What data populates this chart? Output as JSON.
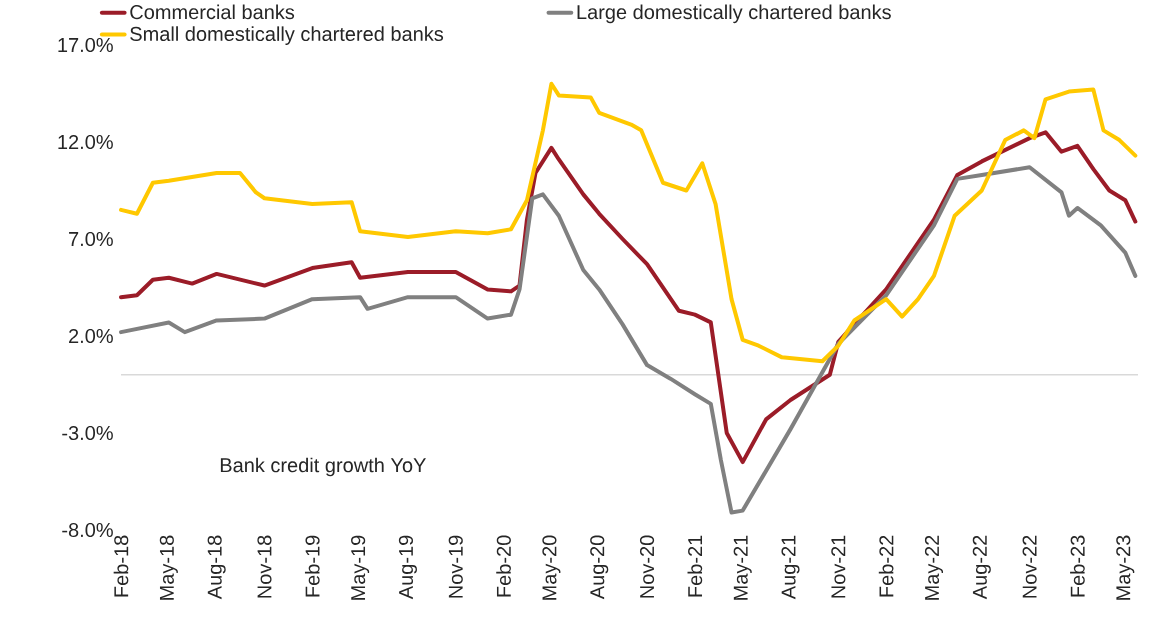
{
  "chart_data": {
    "type": "line",
    "annotations": [
      "Bank credit growth YoY"
    ],
    "xlim": [
      "2018-02-01",
      "2023-05-25"
    ],
    "ylim": [
      -8,
      17
    ],
    "xticks": [
      {
        "value": "2018-02-01",
        "label": "Feb-18"
      },
      {
        "value": "2018-05-01",
        "label": "May-18"
      },
      {
        "value": "2018-08-01",
        "label": "Aug-18"
      },
      {
        "value": "2018-11-01",
        "label": "Nov-18"
      },
      {
        "value": "2019-02-01",
        "label": "Feb-19"
      },
      {
        "value": "2019-05-01",
        "label": "May-19"
      },
      {
        "value": "2019-08-01",
        "label": "Aug-19"
      },
      {
        "value": "2019-11-01",
        "label": "Nov-19"
      },
      {
        "value": "2020-02-01",
        "label": "Feb-20"
      },
      {
        "value": "2020-05-01",
        "label": "May-20"
      },
      {
        "value": "2020-08-01",
        "label": "Aug-20"
      },
      {
        "value": "2020-11-01",
        "label": "Nov-20"
      },
      {
        "value": "2021-02-01",
        "label": "Feb-21"
      },
      {
        "value": "2021-05-01",
        "label": "May-21"
      },
      {
        "value": "2021-08-01",
        "label": "Aug-21"
      },
      {
        "value": "2021-11-01",
        "label": "Nov-21"
      },
      {
        "value": "2022-02-01",
        "label": "Feb-22"
      },
      {
        "value": "2022-05-01",
        "label": "May-22"
      },
      {
        "value": "2022-08-01",
        "label": "Aug-22"
      },
      {
        "value": "2022-11-01",
        "label": "Nov-22"
      },
      {
        "value": "2023-02-01",
        "label": "Feb-23"
      },
      {
        "value": "2023-05-01",
        "label": "May-23"
      }
    ],
    "yticks": [
      {
        "value": -8,
        "label": "-8.0%"
      },
      {
        "value": -3,
        "label": "-3.0%"
      },
      {
        "value": 2,
        "label": "2.0%"
      },
      {
        "value": 7,
        "label": "7.0%"
      },
      {
        "value": 12,
        "label": "12.0%"
      },
      {
        "value": 17,
        "label": "17.0%"
      }
    ],
    "ref_lines": [
      {
        "axis": "y",
        "value": 0,
        "color": "#d9d9d9"
      }
    ],
    "legend": "top",
    "series": [
      {
        "name": "Commercial banks",
        "color": "#9b1c28",
        "x": [
          "2018-02-01",
          "2018-03-01",
          "2018-04-01",
          "2018-05-01",
          "2018-06-15",
          "2018-08-01",
          "2018-11-01",
          "2019-02-01",
          "2019-04-15",
          "2019-05-01",
          "2019-08-01",
          "2019-11-01",
          "2020-01-01",
          "2020-02-15",
          "2020-03-01",
          "2020-03-15",
          "2020-04-01",
          "2020-05-01",
          "2020-05-15",
          "2020-07-01",
          "2020-08-01",
          "2020-09-15",
          "2020-11-01",
          "2021-01-01",
          "2021-02-01",
          "2021-03-01",
          "2021-04-01",
          "2021-05-01",
          "2021-06-15",
          "2021-08-01",
          "2021-10-15",
          "2021-11-01",
          "2022-02-01",
          "2022-05-01",
          "2022-06-15",
          "2022-08-01",
          "2022-11-01",
          "2022-12-01",
          "2023-01-01",
          "2023-02-01",
          "2023-03-01",
          "2023-04-01",
          "2023-05-01",
          "2023-05-20"
        ],
        "values": [
          4.0,
          4.1,
          4.9,
          5.0,
          4.7,
          5.2,
          4.6,
          5.5,
          5.8,
          5.0,
          5.3,
          5.3,
          4.4,
          4.3,
          4.6,
          8.0,
          10.4,
          11.7,
          11.1,
          9.3,
          8.3,
          7.0,
          5.7,
          3.3,
          3.1,
          2.7,
          -3.0,
          -4.5,
          -2.3,
          -1.3,
          0.0,
          1.7,
          4.4,
          8.0,
          10.3,
          11.0,
          12.2,
          12.5,
          11.5,
          11.8,
          10.6,
          9.5,
          9.0,
          7.9
        ]
      },
      {
        "name": "Large domestically chartered banks",
        "color": "#808080",
        "x": [
          "2018-02-01",
          "2018-05-01",
          "2018-06-01",
          "2018-08-01",
          "2018-11-01",
          "2019-02-01",
          "2019-05-01",
          "2019-05-15",
          "2019-08-01",
          "2019-11-01",
          "2020-01-01",
          "2020-02-15",
          "2020-03-01",
          "2020-03-25",
          "2020-04-15",
          "2020-05-15",
          "2020-07-01",
          "2020-08-01",
          "2020-09-15",
          "2020-11-01",
          "2020-12-15",
          "2021-02-01",
          "2021-03-01",
          "2021-03-20",
          "2021-04-10",
          "2021-05-01",
          "2021-08-01",
          "2021-11-01",
          "2022-02-01",
          "2022-05-01",
          "2022-06-15",
          "2022-08-01",
          "2022-11-01",
          "2023-01-01",
          "2023-01-15",
          "2023-02-01",
          "2023-03-15",
          "2023-05-01",
          "2023-05-20"
        ],
        "values": [
          2.2,
          2.7,
          2.2,
          2.8,
          2.9,
          3.9,
          4.0,
          3.4,
          4.0,
          4.0,
          2.9,
          3.1,
          4.4,
          9.1,
          9.3,
          8.2,
          5.4,
          4.4,
          2.6,
          0.5,
          -0.2,
          -1.0,
          -1.5,
          -4.4,
          -7.1,
          -7.0,
          -2.8,
          1.6,
          4.1,
          7.7,
          10.1,
          10.3,
          10.7,
          9.4,
          8.2,
          8.6,
          7.7,
          6.3,
          5.1
        ]
      },
      {
        "name": "Small domestically chartered banks",
        "color": "#ffc800",
        "x": [
          "2018-02-01",
          "2018-03-01",
          "2018-04-01",
          "2018-05-01",
          "2018-08-01",
          "2018-09-15",
          "2018-10-15",
          "2018-11-01",
          "2019-02-01",
          "2019-04-15",
          "2019-05-01",
          "2019-08-01",
          "2019-11-01",
          "2020-01-01",
          "2020-02-15",
          "2020-03-15",
          "2020-04-15",
          "2020-05-01",
          "2020-05-15",
          "2020-07-15",
          "2020-08-01",
          "2020-10-01",
          "2020-10-20",
          "2020-12-01",
          "2021-01-15",
          "2021-02-15",
          "2021-03-10",
          "2021-04-10",
          "2021-05-01",
          "2021-06-01",
          "2021-07-15",
          "2021-10-01",
          "2021-11-01",
          "2021-12-01",
          "2022-02-01",
          "2022-03-01",
          "2022-04-01",
          "2022-05-01",
          "2022-06-10",
          "2022-08-01",
          "2022-09-15",
          "2022-10-20",
          "2022-11-10",
          "2022-12-01",
          "2023-01-15",
          "2023-03-01",
          "2023-03-20",
          "2023-04-20",
          "2023-05-20"
        ],
        "values": [
          8.5,
          8.3,
          9.9,
          10.0,
          10.4,
          10.4,
          9.4,
          9.1,
          8.8,
          8.9,
          7.4,
          7.1,
          7.4,
          7.3,
          7.5,
          9.0,
          12.6,
          15.0,
          14.4,
          14.3,
          13.5,
          12.9,
          12.6,
          9.9,
          9.5,
          10.9,
          8.8,
          3.9,
          1.8,
          1.5,
          0.9,
          0.7,
          1.5,
          2.8,
          3.9,
          3.0,
          3.9,
          5.1,
          8.2,
          9.5,
          12.1,
          12.6,
          12.2,
          14.2,
          14.6,
          14.7,
          12.6,
          12.1,
          11.3
        ]
      }
    ]
  }
}
